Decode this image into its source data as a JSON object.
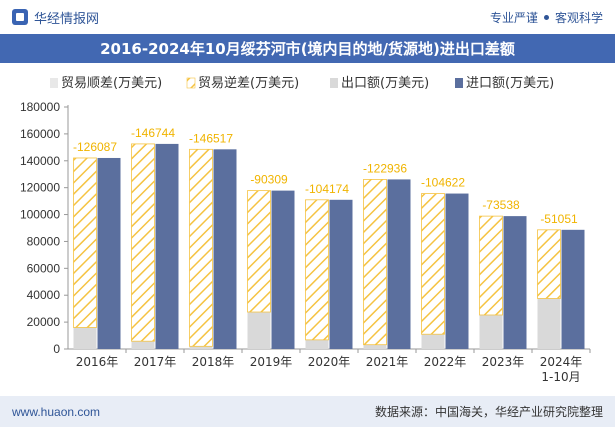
{
  "header": {
    "brand_name": "华经情报网",
    "tagline_left": "专业严谨",
    "tagline_right": "客观科学",
    "logo_icon": "huajing-logo-icon"
  },
  "chart_data": {
    "type": "bar",
    "title": "2016-2024年10月绥芬河市(境内目的地/货源地)进出口差额",
    "categories": [
      "2016年",
      "2017年",
      "2018年",
      "2019年",
      "2020年",
      "2021年",
      "2022年",
      "2023年",
      "2024年 1-10月"
    ],
    "series": [
      {
        "name": "贸易顺差(万美元)",
        "color": "#e8e8e8",
        "values": [
          0,
          0,
          0,
          0,
          0,
          0,
          0,
          0,
          0
        ]
      },
      {
        "name": "贸易逆差(万美元)",
        "color": "#f5c342",
        "values": [
          -126087,
          -146744,
          -146517,
          -90309,
          -104174,
          -122936,
          -104622,
          -73538,
          -51051
        ]
      },
      {
        "name": "出口额(万美元)",
        "color": "#d9d9d9",
        "values": [
          16000,
          5800,
          2000,
          27500,
          6800,
          3200,
          11000,
          25300,
          37600
        ]
      },
      {
        "name": "进口额(万美元)",
        "color": "#5b6f9e",
        "values": [
          142087,
          152544,
          148517,
          117809,
          110974,
          126136,
          115622,
          98838,
          88651
        ]
      }
    ],
    "data_labels": [
      "-126087",
      "-146744",
      "-146517",
      "-90309",
      "-104174",
      "-122936",
      "-104622",
      "-73538",
      "-51051"
    ],
    "ylim": [
      0,
      180000
    ],
    "yticks": [
      0,
      20000,
      40000,
      60000,
      80000,
      100000,
      120000,
      140000,
      160000,
      180000
    ],
    "legend_position": "top",
    "grid": false
  },
  "footer": {
    "website": "www.huaon.com",
    "source": "数据来源：中国海关，华经产业研究院整理"
  }
}
